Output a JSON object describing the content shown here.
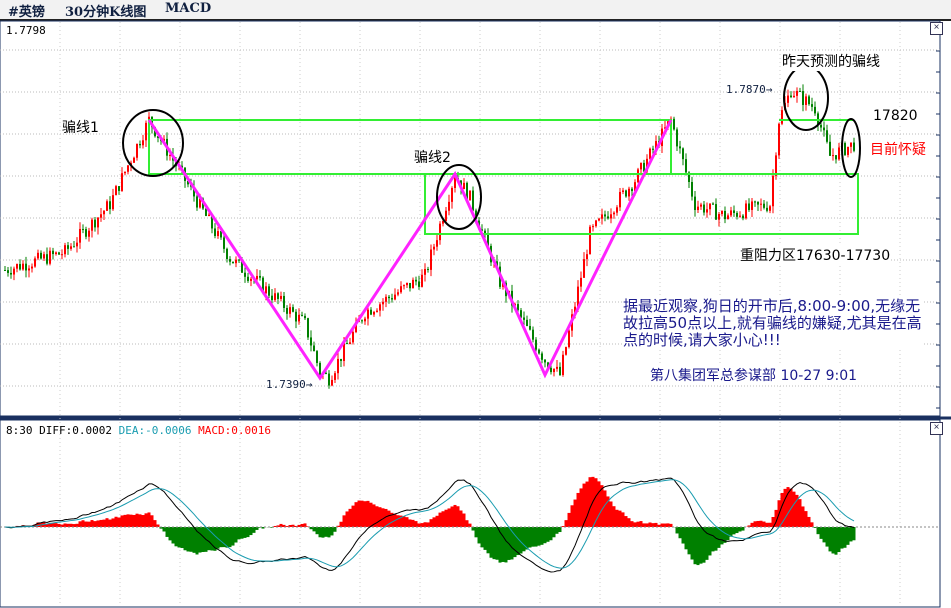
{
  "header": {
    "symbol": "#英镑",
    "period": "30分钟K线图",
    "indicator": "MACD"
  },
  "price_panel": {
    "top_value": "1.7798",
    "close_icon": "close-icon"
  },
  "annotations": {
    "fake1": "骗线1",
    "fake2": "骗线2",
    "yesterday": "昨天预测的骗线",
    "high_label": "1.7870→",
    "low_label": "1.7390→",
    "level": "17820",
    "doubt": "目前怀疑",
    "resistance": "重阻力区17630-17730",
    "note": "据最近观察,狗日的开市后,8:00-9:00,无缘无故拉高50点以上,就有骗线的嫌疑,尤其是在高点的时候,请大家小心!!!",
    "signature": "第八集团军总参谋部 10-27 9:01"
  },
  "macd_panel": {
    "time": "8:30",
    "diff": "DIFF:0.0002",
    "dea": "DEA:-0.0006",
    "macd": "MACD:0.0016"
  },
  "colors": {
    "up": "#ff0000",
    "down": "#008000",
    "box": "#33ee33",
    "zigzag": "#ff22ff",
    "dea": "#1a9cb0",
    "text_blue": "#1a1a8c"
  },
  "chart_data": {
    "type": "candlestick",
    "price_path": [
      [
        0,
        1.757
      ],
      [
        20,
        1.76
      ],
      [
        35,
        1.768
      ],
      [
        48,
        1.782
      ],
      [
        60,
        1.772
      ],
      [
        75,
        1.759
      ],
      [
        100,
        1.748
      ],
      [
        105,
        1.74
      ],
      [
        108,
        1.739
      ],
      [
        120,
        1.75
      ],
      [
        140,
        1.756
      ],
      [
        150,
        1.773
      ],
      [
        155,
        1.769
      ],
      [
        165,
        1.755
      ],
      [
        180,
        1.742
      ],
      [
        185,
        1.7395
      ],
      [
        195,
        1.763
      ],
      [
        210,
        1.772
      ],
      [
        222,
        1.782
      ],
      [
        230,
        1.768
      ],
      [
        240,
        1.766
      ],
      [
        255,
        1.768
      ],
      [
        258,
        1.782
      ],
      [
        262,
        1.787
      ],
      [
        270,
        1.784
      ],
      [
        275,
        1.776
      ],
      [
        283,
        1.778
      ]
    ],
    "levels": {
      "top_line": 1.782,
      "box_low": 1.763,
      "box_high": 1.773
    },
    "zigzag": [
      [
        48,
        1.782
      ],
      [
        105,
        1.739
      ],
      [
        150,
        1.773
      ],
      [
        180,
        1.7395
      ],
      [
        222,
        1.782
      ]
    ]
  }
}
